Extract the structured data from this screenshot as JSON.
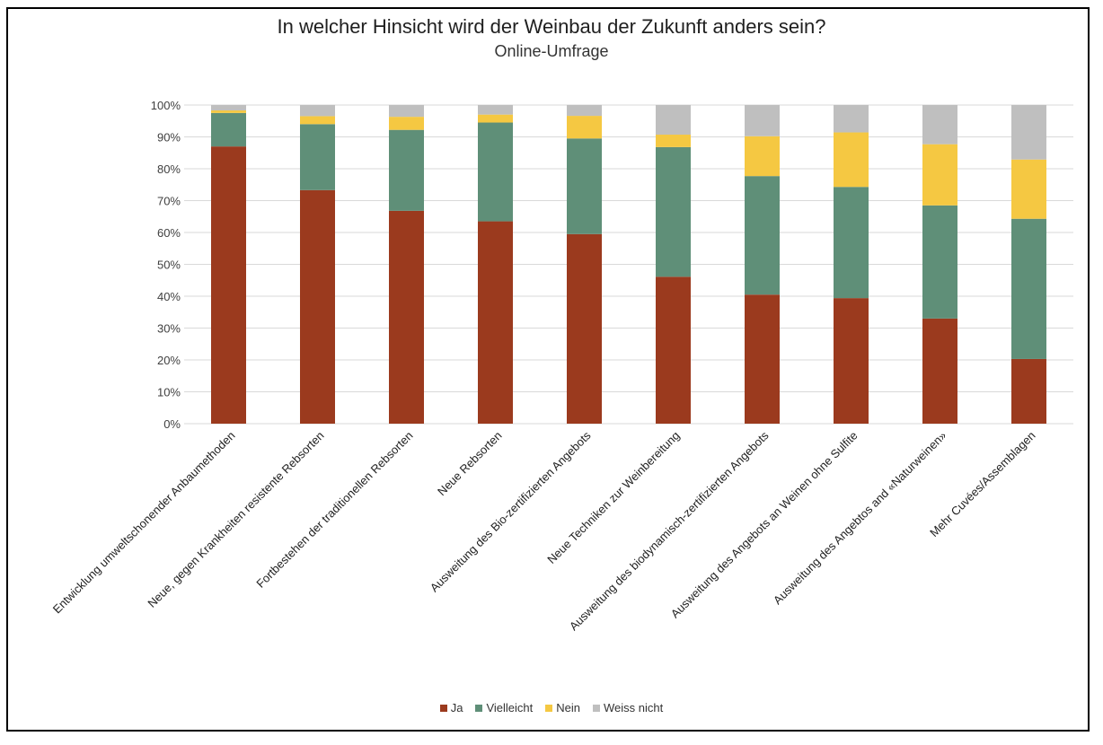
{
  "chart_data": {
    "type": "bar",
    "stacked": true,
    "normalized": true,
    "title": "In welcher Hinsicht wird der Weinbau der Zukunft anders sein?",
    "subtitle": "Online-Umfrage",
    "xlabel": "",
    "ylabel": "",
    "ylim": [
      0,
      100
    ],
    "yticks": [
      "0%",
      "10%",
      "20%",
      "30%",
      "40%",
      "50%",
      "60%",
      "70%",
      "80%",
      "90%",
      "100%"
    ],
    "grid": true,
    "legend_position": "bottom",
    "categories": [
      "Entwicklung umweltschonender Anbaumethoden",
      "Neue, gegen Krankheiten resistente Rebsorten",
      "Fortbestehen der traditionellen Rebsorten",
      "Neue Rebsorten",
      "Ausweitung des Bio-zertifizierten Angebots",
      "Neue Techniken zur Weinbereitung",
      "Ausweitung des biodynamisch-zertifizierten Angebots",
      "Ausweitung des Angebots an Weinen ohne Sulfite",
      "Ausweitung des Angebtos and «Naturweinen»",
      "Mehr Cuvées/Assemblagen"
    ],
    "series": [
      {
        "name": "Ja",
        "color": "#9b3a1e",
        "values": [
          87,
          73.3,
          66.8,
          63.5,
          59.5,
          46.1,
          40.5,
          39.4,
          33,
          20.3
        ]
      },
      {
        "name": "Vielleicht",
        "color": "#5f8f78",
        "values": [
          10.5,
          20.7,
          25.4,
          31,
          30,
          40.7,
          37.2,
          34.9,
          35.5,
          44
        ]
      },
      {
        "name": "Nein",
        "color": "#f5c842",
        "values": [
          0.8,
          2.5,
          4.1,
          2.5,
          7.1,
          3.9,
          12.5,
          17.1,
          19.2,
          18.6
        ]
      },
      {
        "name": "Weiss nicht",
        "color": "#bfbfbf",
        "values": [
          1.7,
          3.5,
          3.7,
          3,
          3.4,
          9.3,
          9.8,
          8.6,
          12.3,
          17.1
        ]
      }
    ]
  }
}
